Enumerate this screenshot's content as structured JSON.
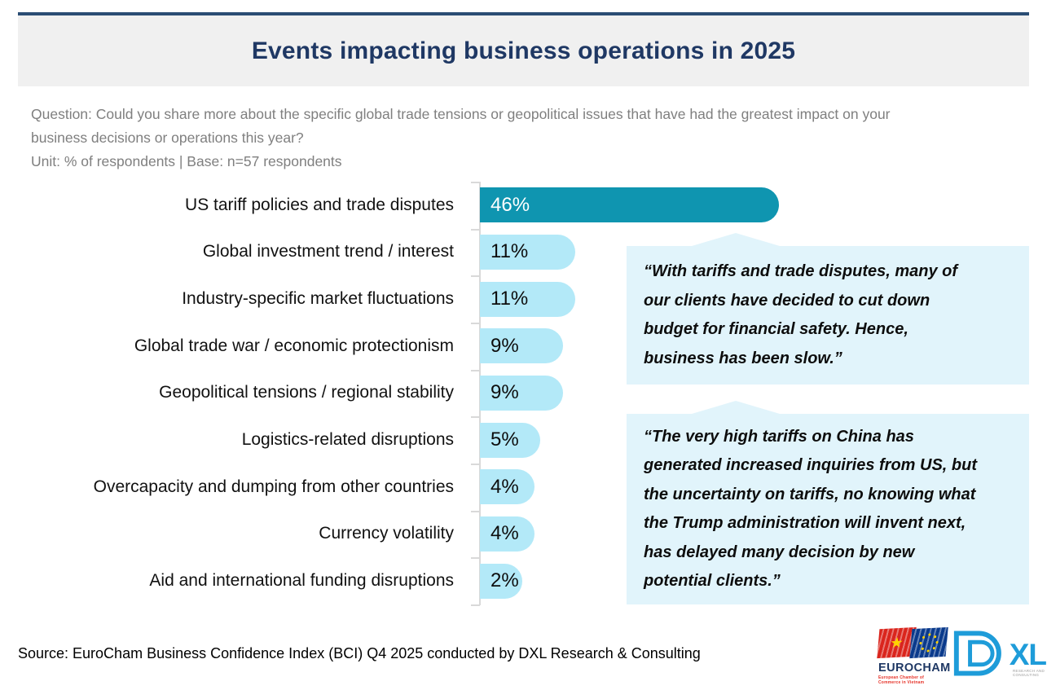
{
  "header": {
    "title": "Events impacting business operations in 2025",
    "question": "Question: Could you share more about the specific global trade tensions or geopolitical issues that have had the greatest impact on your\nbusiness decisions or operations this year?\nUnit: % of respondents | Base: n=57 respondents"
  },
  "chart_data": {
    "type": "bar",
    "orientation": "horizontal",
    "title": "Events impacting business operations in 2025",
    "unit": "% of respondents",
    "base": "n=57 respondents",
    "categories": [
      "US tariff policies and trade disputes",
      "Global investment trend / interest",
      "Industry-specific market fluctuations",
      "Global trade war / economic protectionism",
      "Geopolitical tensions / regional stability",
      "Logistics-related disruptions",
      "Overcapacity and dumping from other countries",
      "Currency volatility",
      "Aid and international funding disruptions"
    ],
    "values": [
      46,
      11,
      11,
      9,
      9,
      5,
      4,
      4,
      2
    ],
    "unit_suffix": "%",
    "highlight_index": 0,
    "xlim": [
      0,
      50
    ],
    "grid": false,
    "colors": {
      "primary_bar": "#0f95b0",
      "secondary_bar": "#b3e9f8",
      "axis": "#d9d9d9",
      "primary_value_text": "#ffffff",
      "secondary_value_text": "#0d0d0d"
    }
  },
  "quotes": [
    {
      "text": "“With tariffs and trade disputes, many of\nour clients have decided to cut down\nbudget for financial safety. Hence,\nbusiness has been slow.”"
    },
    {
      "text": "“The very high tariffs on China has\ngenerated increased inquiries from US, but\nthe uncertainty on tariffs, no knowing what\nthe Trump administration will invent next,\nhas delayed many decision by new\npotential clients.”"
    }
  ],
  "footer": {
    "source": "Source: EuroCham Business Confidence Index (BCI) Q4 2025 conducted by DXL Research & Consulting",
    "eurocham_logo": {
      "word": "EUROCHAM",
      "tagline": "European Chamber of Commerce in Vietnam",
      "star": "★"
    },
    "dxl_logo": {
      "letters": "XL",
      "sub": "RESEARCH AND CONSULTING"
    }
  }
}
